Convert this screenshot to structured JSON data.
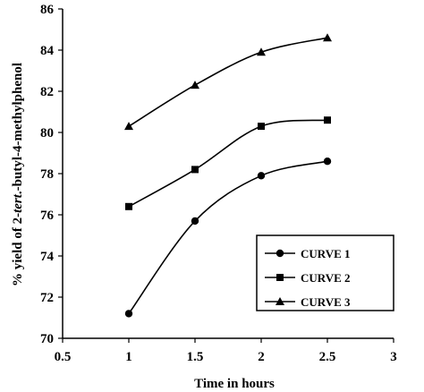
{
  "chart_data": {
    "type": "line",
    "xlabel": "Time in hours",
    "ylabel_parts": [
      "% yield of 2-",
      "tert",
      ".-butyl-4-methylphenol"
    ],
    "xlim": [
      0.5,
      3
    ],
    "ylim": [
      70,
      86
    ],
    "xticks": [
      0.5,
      1,
      1.5,
      2,
      2.5,
      3
    ],
    "yticks": [
      70,
      72,
      74,
      76,
      78,
      80,
      82,
      84,
      86
    ],
    "x_tick_labels": [
      "0.5",
      "1",
      "1.5",
      "2",
      "2.5",
      "3"
    ],
    "y_tick_labels": [
      "70",
      "72",
      "74",
      "76",
      "78",
      "80",
      "82",
      "84",
      "86"
    ],
    "grid": false,
    "legend_position": "bottom-right",
    "x": [
      1,
      1.5,
      2,
      2.5
    ],
    "series": [
      {
        "name": "CURVE 1",
        "marker": "circle",
        "values": [
          71.2,
          75.7,
          77.9,
          78.6
        ]
      },
      {
        "name": "CURVE 2",
        "marker": "square",
        "values": [
          76.4,
          78.2,
          80.3,
          80.6
        ]
      },
      {
        "name": "CURVE 3",
        "marker": "triangle",
        "values": [
          80.3,
          82.3,
          83.9,
          84.6
        ]
      }
    ],
    "colors": {
      "line": "#000000",
      "background": "#ffffff"
    }
  }
}
